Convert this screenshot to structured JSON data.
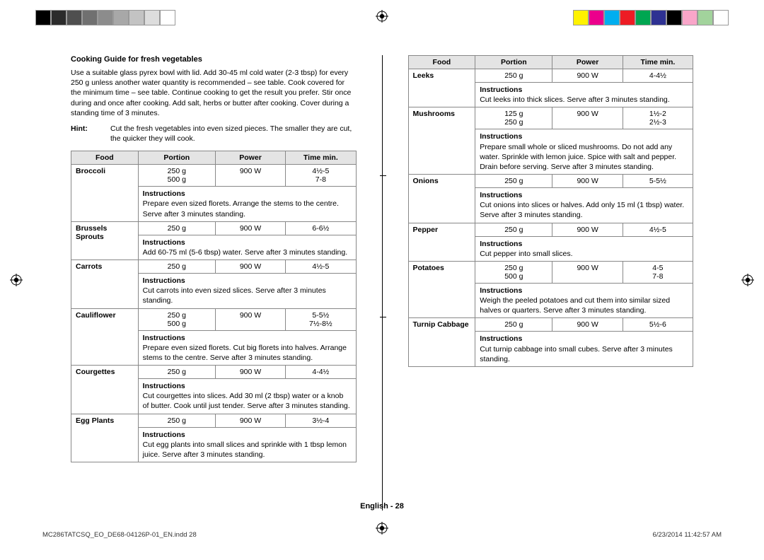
{
  "colorbar": {
    "left": [
      "#000000",
      "#2b2b2b",
      "#4f4f4f",
      "#707070",
      "#8c8c8c",
      "#a8a8a8",
      "#c3c3c3",
      "#dddddd",
      "#ffffff"
    ],
    "right": [
      "#fff200",
      "#ec008c",
      "#00aeef",
      "#ed1c24",
      "#00a651",
      "#2e3192",
      "#000000",
      "#f9a6c9",
      "#a2d39c",
      "#ffffff"
    ]
  },
  "title": "Cooking Guide for fresh vegetables",
  "intro": "Use a suitable glass pyrex bowl with lid. Add 30-45 ml cold water (2-3 tbsp) for every 250 g unless another water quantity is recommended – see table. Cook covered for the minimum time – see table. Continue cooking to get the result you prefer. Stir once during and once after cooking. Add salt, herbs or butter after cooking. Cover during a standing time of 3 minutes.",
  "hint_label": "Hint:",
  "hint_text": "Cut the fresh vegetables into even sized pieces. The smaller they are cut, the quicker they will cook.",
  "headers": {
    "food": "Food",
    "portion": "Portion",
    "power": "Power",
    "time": "Time min."
  },
  "instr_label": "Instructions",
  "left_items": [
    {
      "food": "Broccoli",
      "portion": "250 g\n500 g",
      "power": "900 W",
      "time": "4½-5\n7-8",
      "instr": "Prepare even sized florets. Arrange the stems to the centre. Serve after 3 minutes standing."
    },
    {
      "food": "Brussels Sprouts",
      "portion": "250 g",
      "power": "900 W",
      "time": "6-6½",
      "instr": "Add 60-75 ml (5-6 tbsp) water. Serve after 3 minutes standing."
    },
    {
      "food": "Carrots",
      "portion": "250 g",
      "power": "900 W",
      "time": "4½-5",
      "instr": "Cut carrots into even sized slices. Serve after 3 minutes standing."
    },
    {
      "food": "Cauliflower",
      "portion": "250 g\n500 g",
      "power": "900 W",
      "time": "5-5½\n7½-8½",
      "instr": "Prepare even sized florets. Cut big florets into halves. Arrange stems to the centre. Serve after 3 minutes standing."
    },
    {
      "food": "Courgettes",
      "portion": "250 g",
      "power": "900 W",
      "time": "4-4½",
      "instr": "Cut courgettes into slices. Add 30 ml (2 tbsp) water or a knob of butter. Cook until just tender. Serve after 3 minutes standing."
    },
    {
      "food": "Egg Plants",
      "portion": "250 g",
      "power": "900 W",
      "time": "3½-4",
      "instr": "Cut egg plants into small slices and sprinkle with 1 tbsp lemon juice. Serve after 3 minutes standing."
    }
  ],
  "right_items": [
    {
      "food": "Leeks",
      "portion": "250 g",
      "power": "900 W",
      "time": "4-4½",
      "instr": "Cut leeks into thick slices. Serve after 3 minutes standing."
    },
    {
      "food": "Mushrooms",
      "portion": "125 g\n250 g",
      "power": "900 W",
      "time": "1½-2\n2½-3",
      "instr": "Prepare small whole or sliced mushrooms. Do not add any water. Sprinkle with lemon juice. Spice with salt and pepper. Drain before serving. Serve after 3 minutes standing."
    },
    {
      "food": "Onions",
      "portion": "250 g",
      "power": "900 W",
      "time": "5-5½",
      "instr": "Cut onions into slices or halves. Add only 15 ml (1 tbsp) water. Serve after 3 minutes standing."
    },
    {
      "food": "Pepper",
      "portion": "250 g",
      "power": "900 W",
      "time": "4½-5",
      "instr": "Cut pepper into small slices."
    },
    {
      "food": "Potatoes",
      "portion": "250 g\n500 g",
      "power": "900 W",
      "time": "4-5\n7-8",
      "instr": "Weigh the peeled potatoes and cut them into similar sized halves or quarters. Serve after 3 minutes standing."
    },
    {
      "food": "Turnip Cabbage",
      "portion": "250 g",
      "power": "900 W",
      "time": "5½-6",
      "instr": "Cut turnip cabbage into small cubes. Serve after 3 minutes standing."
    }
  ],
  "page_label": "English - 28",
  "footer": {
    "file": "MC286TATCSQ_EO_DE68-04126P-01_EN.indd   28",
    "stamp": "6/23/2014   11:42:57 AM"
  }
}
